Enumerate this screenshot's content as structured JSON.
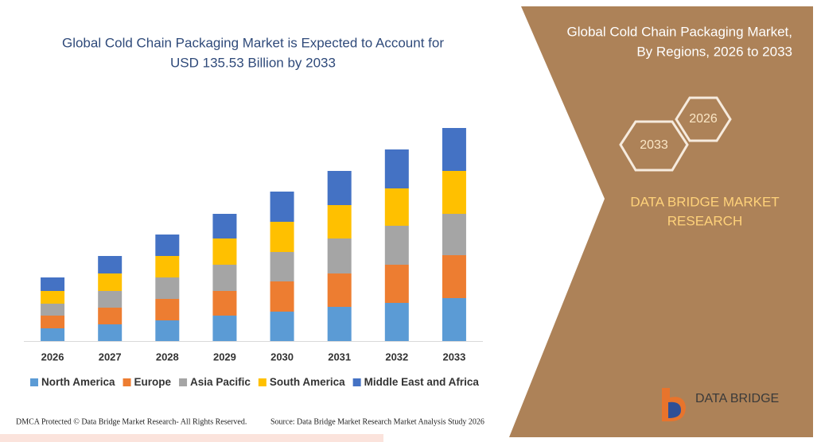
{
  "chart_data": {
    "type": "bar",
    "stacked": true,
    "title": [
      "Global Cold Chain Packaging Market is Expected to Account for",
      "USD 135.53 Billion by 2033"
    ],
    "categories": [
      "2026",
      "2027",
      "2028",
      "2029",
      "2030",
      "2031",
      "2032",
      "2033"
    ],
    "series": [
      {
        "name": "North America",
        "color": "#5b9bd5",
        "values": [
          16,
          21,
          26,
          32,
          37,
          43,
          48,
          54
        ]
      },
      {
        "name": "Europe",
        "color": "#ed7d31",
        "values": [
          16,
          21,
          27,
          31,
          38,
          42,
          48,
          54
        ]
      },
      {
        "name": "Asia Pacific",
        "color": "#a5a5a5",
        "values": [
          15,
          21,
          27,
          33,
          37,
          44,
          49,
          52
        ]
      },
      {
        "name": "South America",
        "color": "#ffc000",
        "values": [
          16,
          22,
          27,
          33,
          38,
          42,
          47,
          54
        ]
      },
      {
        "name": "Middle East and Africa",
        "color": "#4472c4",
        "values": [
          17,
          22,
          27,
          31,
          38,
          43,
          49,
          54
        ]
      }
    ],
    "ylim": [
      0,
      280
    ]
  },
  "side_panel": {
    "title": [
      "Global Cold Chain Packaging Market,",
      "By Regions, 2026 to 2033"
    ],
    "badges": [
      "2026",
      "2033"
    ],
    "brand": [
      "DATA BRIDGE MARKET",
      "RESEARCH"
    ]
  },
  "logo": "DATA BRIDGE",
  "footer": {
    "left": "DMCA Protected © Data Bridge Market Research- All Rights Reserved.",
    "right": "Source: Data Bridge Market Research Market Analysis Study 2026"
  }
}
